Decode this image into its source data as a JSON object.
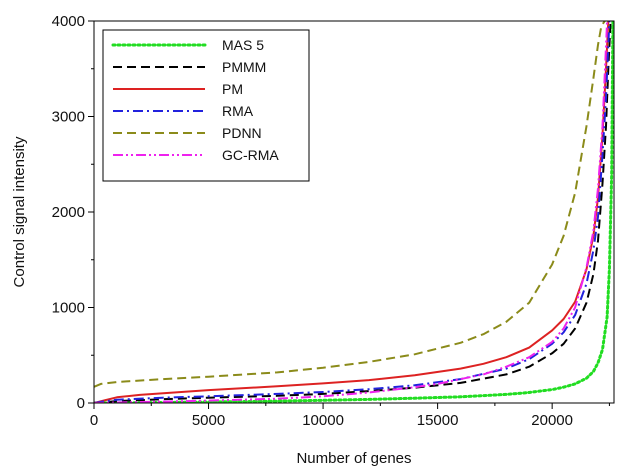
{
  "chart_data": {
    "type": "line",
    "xlabel": "Number of genes",
    "ylabel": "Control signal intensity",
    "xlim": [
      0,
      22700
    ],
    "ylim": [
      0,
      4000
    ],
    "xticks": [
      0,
      5000,
      10000,
      15000,
      20000
    ],
    "yticks": [
      0,
      1000,
      2000,
      3000,
      4000
    ],
    "x_minor_step": 2500,
    "y_minor_step": 500,
    "legend_position": "top-left",
    "series": [
      {
        "name": "MAS 5",
        "color": "#22dd22",
        "dash": "dotted",
        "x": [
          0,
          2000,
          5000,
          8000,
          10000,
          12000,
          14000,
          16000,
          18000,
          19000,
          20000,
          20500,
          21000,
          21500,
          21800,
          22000,
          22200,
          22400,
          22500,
          22600,
          22650
        ],
        "y": [
          0,
          3,
          10,
          20,
          28,
          38,
          50,
          65,
          90,
          110,
          140,
          165,
          200,
          260,
          330,
          420,
          560,
          900,
          1400,
          2400,
          4000
        ]
      },
      {
        "name": "PMMM",
        "color": "#000000",
        "dash": "dashed",
        "x": [
          0,
          1000,
          3000,
          5000,
          8000,
          10000,
          12000,
          14000,
          16000,
          18000,
          19000,
          20000,
          20500,
          21000,
          21500,
          21800,
          22000,
          22200,
          22350,
          22450,
          22550
        ],
        "y": [
          0,
          20,
          40,
          55,
          75,
          95,
          125,
          160,
          210,
          300,
          380,
          520,
          620,
          780,
          1050,
          1350,
          1700,
          2300,
          2900,
          3500,
          4000
        ]
      },
      {
        "name": "PM",
        "color": "#dd2222",
        "dash": "solid",
        "x": [
          0,
          500,
          1000,
          2000,
          5000,
          8000,
          10000,
          12000,
          14000,
          16000,
          17000,
          18000,
          19000,
          20000,
          20500,
          21000,
          21500,
          21800,
          22000,
          22200,
          22350,
          22450
        ],
        "y": [
          0,
          30,
          60,
          85,
          135,
          175,
          205,
          240,
          290,
          360,
          410,
          480,
          580,
          760,
          880,
          1060,
          1400,
          1750,
          2150,
          2800,
          3500,
          4000
        ]
      },
      {
        "name": "RMA",
        "color": "#2222dd",
        "dash": "dashdot",
        "x": [
          0,
          500,
          1000,
          3000,
          5000,
          8000,
          10000,
          12000,
          14000,
          16000,
          18000,
          19000,
          20000,
          20500,
          21000,
          21500,
          21800,
          22000,
          22200,
          22350,
          22500
        ],
        "y": [
          0,
          20,
          35,
          55,
          70,
          95,
          115,
          145,
          185,
          250,
          360,
          460,
          620,
          740,
          920,
          1250,
          1600,
          1950,
          2600,
          3200,
          4000
        ]
      },
      {
        "name": "PDNN",
        "color": "#8b8b1a",
        "dash": "dashed",
        "x": [
          0,
          300,
          1000,
          3000,
          5000,
          8000,
          10000,
          12000,
          14000,
          16000,
          17000,
          18000,
          19000,
          20000,
          20500,
          21000,
          21500,
          21800,
          22000,
          22150,
          22300
        ],
        "y": [
          170,
          200,
          220,
          250,
          275,
          320,
          370,
          430,
          510,
          630,
          720,
          850,
          1050,
          1450,
          1750,
          2200,
          2900,
          3400,
          3750,
          3950,
          4000
        ]
      },
      {
        "name": "GC-RMA",
        "color": "#ee22ee",
        "dash": "dashdotdot",
        "x": [
          0,
          1000,
          3000,
          5000,
          8000,
          10000,
          12000,
          14000,
          15000,
          16000,
          17000,
          18000,
          19000,
          20000,
          20500,
          21000,
          21500,
          21800,
          22000,
          22200,
          22400
        ],
        "y": [
          0,
          5,
          15,
          25,
          45,
          70,
          110,
          165,
          200,
          250,
          300,
          380,
          480,
          640,
          780,
          1000,
          1420,
          1800,
          2250,
          2900,
          4000
        ]
      }
    ]
  }
}
